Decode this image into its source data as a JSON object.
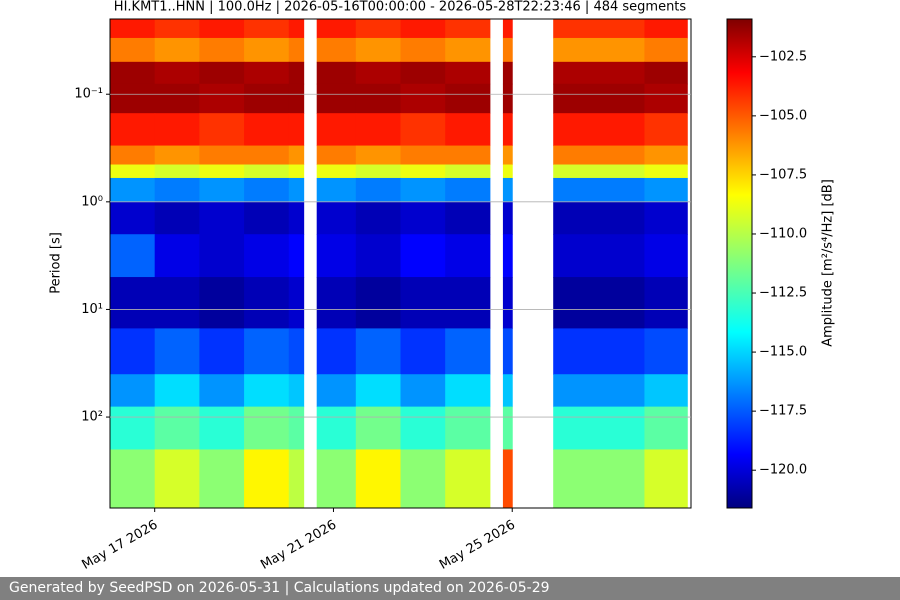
{
  "chart_data": {
    "type": "heatmap",
    "title": "HI.KMT1..HNN | 100.0Hz | 2026-05-16T00:00:00 - 2026-05-28T22:23:46 | 484 segments",
    "y_label": "Period [s]",
    "colorbar_label": "Amplitude [m²/s⁴/Hz] [dB]",
    "colormap": "jet",
    "y_log": true,
    "y_inverted": true,
    "grid": "y",
    "x_edges": [
      "2026-05-16T00:00",
      "2026-05-17T00:00",
      "2026-05-18T00:00",
      "2026-05-19T00:00",
      "2026-05-20T00:00",
      "2026-05-20T08:00",
      "2026-05-20T15:00",
      "2026-05-21T12:00",
      "2026-05-22T12:00",
      "2026-05-23T12:00",
      "2026-05-24T12:00",
      "2026-05-24T19:00",
      "2026-05-25T00:00",
      "2026-05-25T22:00",
      "2026-05-27T23:00",
      "2026-05-28T22:00"
    ],
    "y_edges": [
      0.02,
      0.03,
      0.05,
      0.08,
      0.15,
      0.3,
      0.45,
      0.6,
      1.0,
      2,
      5,
      15,
      40,
      80,
      200,
      700
    ],
    "values": [
      [
        -104,
        -104.5,
        -104,
        -104.5,
        -104,
        null,
        -104,
        -104.5,
        -104,
        -104.5,
        null,
        -104,
        null,
        -104.5,
        -104
      ],
      [
        -106,
        -106.5,
        -106,
        -106.5,
        -106,
        null,
        -106,
        -106.5,
        -106,
        -106.5,
        null,
        -106,
        null,
        -106.5,
        -106
      ],
      [
        -101.5,
        -101.8,
        -101.5,
        -101.8,
        -101.5,
        null,
        -101.5,
        -101.8,
        -101.5,
        -101.8,
        null,
        -101.5,
        null,
        -101.8,
        -101.5
      ],
      [
        -101.5,
        -101.5,
        -101.8,
        -101.5,
        -101.5,
        null,
        -101.5,
        -101.5,
        -101.8,
        -101.5,
        null,
        -101.5,
        null,
        -101.5,
        -101.8
      ],
      [
        -104,
        -104,
        -104.5,
        -104,
        -104,
        null,
        -104,
        -104,
        -104.5,
        -104,
        null,
        -104,
        null,
        -104,
        -104.5
      ],
      [
        -106,
        -106.5,
        -106,
        -106,
        -106.5,
        null,
        -106,
        -106.5,
        -106,
        -106,
        null,
        -106.5,
        null,
        -106,
        -106.5
      ],
      [
        -109,
        -109.5,
        -109,
        -109.5,
        -109,
        null,
        -109,
        -109.5,
        -109,
        -109.5,
        null,
        -109,
        null,
        -109.5,
        -109
      ],
      [
        -116,
        -116.5,
        -116,
        -116.5,
        -116,
        null,
        -116,
        -116.5,
        -116,
        -116.5,
        null,
        -116,
        null,
        -116.5,
        -116
      ],
      [
        -120,
        -120.5,
        -120,
        -120.5,
        -120,
        null,
        -120,
        -120.5,
        -120,
        -120.5,
        null,
        -120,
        null,
        -120.5,
        -120
      ],
      [
        -117,
        -119.5,
        -120,
        -119.5,
        -119,
        null,
        -119.5,
        -120,
        -119,
        -119.5,
        null,
        -119,
        null,
        -120,
        -119.5
      ],
      [
        -120.5,
        -120.5,
        -121,
        -120.5,
        -120,
        null,
        -120.5,
        -121,
        -120.5,
        -120.5,
        null,
        -120,
        null,
        -121,
        -120.5
      ],
      [
        -118,
        -117,
        -118,
        -117,
        -117.5,
        null,
        -118,
        -117,
        -118,
        -117,
        null,
        -117.5,
        null,
        -118,
        -117.5
      ],
      [
        -116,
        -114.5,
        -116,
        -114.5,
        -115,
        null,
        -116,
        -114.5,
        -116,
        -114.5,
        null,
        -115,
        null,
        -116,
        -115
      ],
      [
        -113,
        -112,
        -113,
        -111.5,
        -112,
        null,
        -113,
        -111.5,
        -113,
        -112,
        null,
        -112,
        null,
        -113,
        -112
      ],
      [
        -111,
        -109.5,
        -111,
        -108.5,
        -110,
        null,
        -111,
        -108.5,
        -111,
        -109.5,
        null,
        -105,
        null,
        -111,
        -109.5
      ]
    ],
    "xlim": [
      "2026-05-16T00:00",
      "2026-05-29T00:00"
    ],
    "xticks": [
      {
        "value": "2026-05-17T00:00",
        "label": "May 17 2026"
      },
      {
        "value": "2026-05-21T00:00",
        "label": "May 21 2026"
      },
      {
        "value": "2026-05-25T00:00",
        "label": "May 25 2026"
      }
    ],
    "ylim": [
      0.02,
      700
    ],
    "yticks": [
      {
        "value": 0.1,
        "label": "10⁻¹"
      },
      {
        "value": 1,
        "label": "10⁰"
      },
      {
        "value": 10,
        "label": "10¹"
      },
      {
        "value": 100,
        "label": "10²"
      }
    ],
    "zlim": [
      -121.6,
      -100.9
    ],
    "zticks": [
      {
        "value": -102.5,
        "label": "−102.5"
      },
      {
        "value": -105,
        "label": "−105.0"
      },
      {
        "value": -107.5,
        "label": "−107.5"
      },
      {
        "value": -110,
        "label": "−110.0"
      },
      {
        "value": -112.5,
        "label": "−112.5"
      },
      {
        "value": -115,
        "label": "−115.0"
      },
      {
        "value": -117.5,
        "label": "−117.5"
      },
      {
        "value": -120,
        "label": "−120.0"
      }
    ]
  },
  "footer": "Generated by SeedPSD on 2026-05-31 | Calculations updated on 2026-05-29"
}
